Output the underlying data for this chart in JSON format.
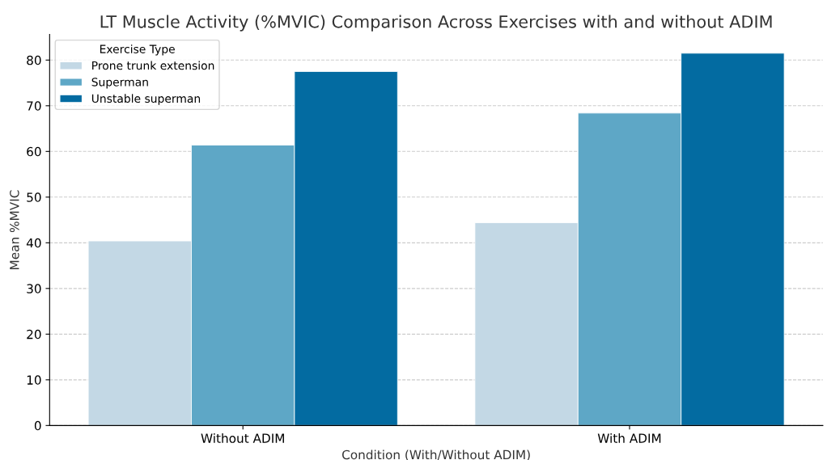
{
  "chart_data": {
    "type": "bar",
    "title": "LT Muscle Activity (%MVIC) Comparison Across Exercises with and without ADIM",
    "xlabel": "Condition (With/Without ADIM)",
    "ylabel": "Mean %MVIC",
    "legend_title": "Exercise Type",
    "categories": [
      "Without ADIM",
      "With ADIM"
    ],
    "series": [
      {
        "name": "Prone trunk extension",
        "color": "#c3d8e5",
        "values": [
          40.4,
          44.4
        ]
      },
      {
        "name": "Superman",
        "color": "#5ea7c6",
        "values": [
          61.4,
          68.4
        ]
      },
      {
        "name": "Unstable superman",
        "color": "#036ba1",
        "values": [
          77.5,
          81.5
        ]
      }
    ],
    "ylim": [
      0,
      85.6
    ],
    "yticks": [
      0,
      10,
      20,
      30,
      40,
      50,
      60,
      70,
      80
    ],
    "grid": "y",
    "legend": "top left"
  }
}
